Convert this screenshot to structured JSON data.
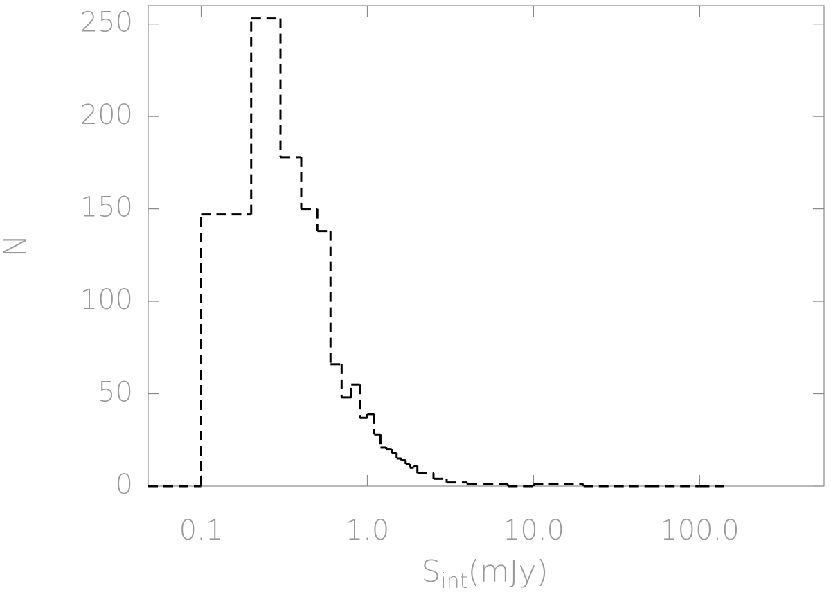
{
  "chart_data": {
    "type": "histogram",
    "xlabel": "S",
    "xlabel_subscript": "int",
    "xlabel_suffix": "(mJy)",
    "ylabel": "N",
    "log_x": true,
    "color": "#000000",
    "bins": [
      0.048,
      0.1,
      0.2,
      0.3,
      0.4,
      0.5,
      0.6,
      0.7,
      0.8,
      0.9,
      1.0,
      1.1,
      1.2,
      1.3,
      1.4,
      1.5,
      1.6,
      1.7,
      1.8,
      1.9,
      2.0,
      2.5,
      3,
      4,
      5,
      7,
      10,
      20,
      50,
      100,
      140
    ],
    "values": [
      0,
      147,
      253,
      178,
      150,
      138,
      66,
      48,
      55,
      37,
      39,
      28,
      21,
      20,
      18,
      15,
      14,
      12,
      10,
      11,
      7,
      4,
      2,
      1,
      1,
      0,
      1,
      0,
      0,
      0
    ],
    "xlim": [
      0.048,
      560
    ],
    "xticks": [
      {
        "value": 0.1,
        "label": "0.1"
      },
      {
        "value": 1,
        "label": "1.0"
      },
      {
        "value": 10,
        "label": "10.0"
      },
      {
        "value": 100,
        "label": "100.0"
      }
    ],
    "ylim": [
      0,
      260
    ],
    "yticks": [
      0,
      50,
      100,
      150,
      200,
      250
    ]
  }
}
